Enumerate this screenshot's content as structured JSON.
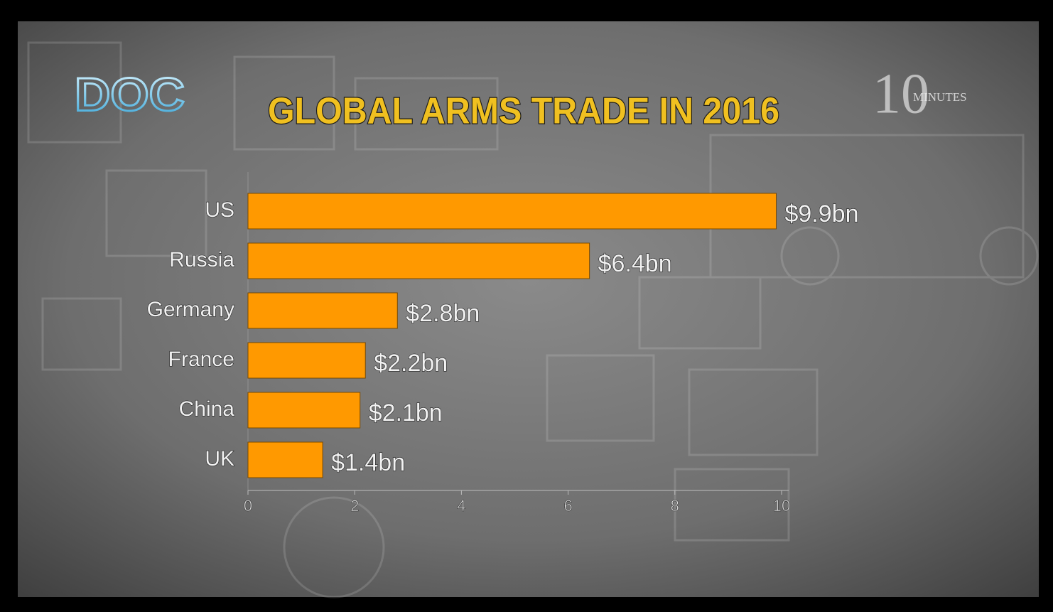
{
  "chart_data": {
    "type": "bar",
    "orientation": "horizontal",
    "title": "GLOBAL ARMS TRADE IN 2016",
    "annotations": [
      "DOC",
      "10",
      "MINUTES"
    ],
    "categories": [
      "US",
      "Russia",
      "Germany",
      "France",
      "China",
      "UK"
    ],
    "values": [
      9.9,
      6.4,
      2.8,
      2.2,
      2.1,
      1.4
    ],
    "value_labels": [
      "$9.9bn",
      "$6.4bn",
      "$2.8bn",
      "$2.2bn",
      "$2.1bn",
      "$1.4bn"
    ],
    "color": "#ff9900",
    "xlim": [
      0,
      10
    ],
    "xticks": [
      0,
      2,
      4,
      6,
      8,
      10
    ]
  }
}
